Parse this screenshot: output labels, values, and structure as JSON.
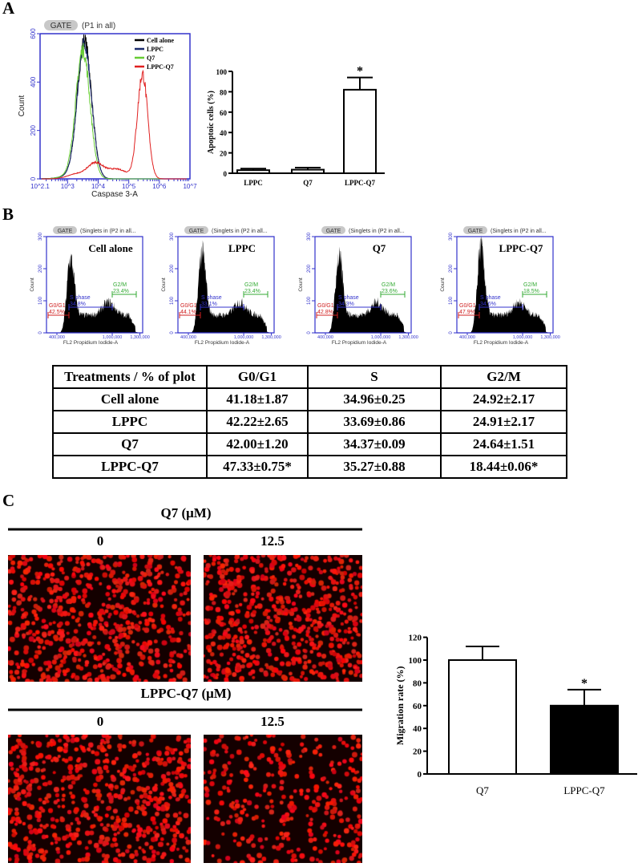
{
  "panel_labels": {
    "a": "A",
    "b": "B",
    "c": "C"
  },
  "chart_data": [
    {
      "id": "caspase_histogram",
      "type": "line",
      "gate_pill": "GATE",
      "gate_text": "(P1 in all)",
      "xlabel": "Caspase 3-A",
      "ylabel": "Count",
      "x_scale": "log",
      "xlim_log10": [
        2.1,
        7
      ],
      "x_ticks": [
        "10^2.1",
        "10^3",
        "10^4",
        "10^5",
        "10^6",
        "10^7"
      ],
      "ylim": [
        0,
        600
      ],
      "y_ticks": [
        0,
        200,
        400,
        600
      ],
      "axis_color": "#3333cc",
      "legend_position": "top-right",
      "series": [
        {
          "name": "Cell alone",
          "color": "#000000",
          "peak_log10": 3.55,
          "peak_count": 570
        },
        {
          "name": "LPPC",
          "color": "#1a2a6c",
          "peak_log10": 3.55,
          "peak_count": 560
        },
        {
          "name": "Q7",
          "color": "#66cc33",
          "peak_log10": 3.5,
          "peak_count": 530
        },
        {
          "name": "LPPC-Q7",
          "color": "#e02020",
          "peak_log10": 5.45,
          "peak_count": 430
        }
      ]
    },
    {
      "id": "apoptotic_bar",
      "type": "bar",
      "categories": [
        "LPPC",
        "Q7",
        "LPPC-Q7"
      ],
      "values": [
        3,
        3.5,
        82
      ],
      "errors": [
        1.5,
        2,
        12
      ],
      "significance": [
        "",
        "",
        "*"
      ],
      "ylabel": "Apoptoic cells (%)",
      "ylim": [
        0,
        100
      ],
      "y_ticks": [
        0,
        20,
        40,
        60,
        80,
        100
      ],
      "bar_color": "#ffffff"
    },
    {
      "id": "cell_cycle_histograms",
      "type": "area",
      "gate_pill": "GATE",
      "gate_text": "(Singlets in (P2 in all...",
      "xlabel": "FL2 Propidium Iodide-A",
      "ylabel": "Count",
      "xlim": [
        287000,
        1330000
      ],
      "x_ticks": [
        {
          "v": 400000,
          "label": "400,000"
        },
        {
          "v": 1000000,
          "label": "1,000,000"
        },
        {
          "v": 1300000,
          "label": "1,300,000"
        }
      ],
      "ylim": [
        0,
        300
      ],
      "y_ticks": [
        0,
        100,
        200,
        300
      ],
      "gate_colors": {
        "g0g1": "#d02020",
        "s": "#3333cc",
        "g2m": "#33aa33"
      },
      "panels": [
        {
          "title": "Cell alone",
          "g0g1_label": "G0/G1",
          "g0g1": "42.5%",
          "s_label": "S phase",
          "s": "34.8%",
          "g2m_label": "G2/M",
          "g2m": "23.4%",
          "peak": 220
        },
        {
          "title": "LPPC",
          "g0g1_label": "G0/G1",
          "g0g1": "44.1%",
          "s_label": "S phase",
          "s": "33.1%",
          "g2m_label": "G2/M",
          "g2m": "23.4%",
          "peak": 240
        },
        {
          "title": "Q7",
          "g0g1_label": "G0/G1",
          "g0g1": "42.8%",
          "s_label": "S phase",
          "s": "34.3%",
          "g2m_label": "G2/M",
          "g2m": "23.6%",
          "peak": 225
        },
        {
          "title": "LPPC-Q7",
          "g0g1_label": "G0/G1",
          "g0g1": "47.9%",
          "s_label": "S phase",
          "s": "34.6%",
          "g2m_label": "G2/M",
          "g2m": "18.5%",
          "peak": 255
        }
      ]
    },
    {
      "id": "cell_cycle_table",
      "type": "table",
      "headers": [
        "Treatments / % of plot",
        "G0/G1",
        "S",
        "G2/M"
      ],
      "rows": [
        [
          "Cell alone",
          "41.18±1.87",
          "34.96±0.25",
          "24.92±2.17"
        ],
        [
          "LPPC",
          "42.22±2.65",
          "33.69±0.86",
          "24.91±2.17"
        ],
        [
          "Q7",
          "42.00±1.20",
          "34.37±0.09",
          "24.64±1.51"
        ],
        [
          "LPPC-Q7",
          "47.33±0.75*",
          "35.27±0.88",
          "18.44±0.06*"
        ]
      ]
    },
    {
      "id": "migration_bar",
      "type": "bar",
      "categories": [
        "Q7",
        "LPPC-Q7"
      ],
      "values": [
        100,
        60
      ],
      "errors": [
        12,
        14
      ],
      "significance": [
        "",
        "*"
      ],
      "ylabel": "Migration rate (%)",
      "ylim": [
        0,
        120
      ],
      "y_ticks": [
        0,
        20,
        40,
        60,
        80,
        100,
        120
      ],
      "bar_colors": [
        "#ffffff",
        "#000000"
      ]
    }
  ],
  "panel_c": {
    "groups": [
      {
        "title": "Q7 (μM)",
        "doses": [
          "0",
          "12.5"
        ]
      },
      {
        "title": "LPPC-Q7 (μM)",
        "doses": [
          "0",
          "12.5"
        ]
      }
    ],
    "image_color": "#ff2020"
  }
}
